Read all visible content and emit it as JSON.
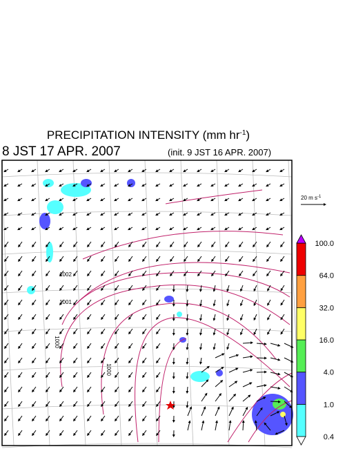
{
  "header": {
    "title": [
      "PRECIPITATION INTENSITY (mm hr",
      "-1",
      ")"
    ],
    "valid_time": "8 JST 17 APR. 2007",
    "init_time": "(init. 9 JST 16 APR. 2007)"
  },
  "vector_scale": [
    "20 m s",
    "-1"
  ],
  "contour_labels": [
    "1002",
    "1001",
    "1000",
    "1000"
  ],
  "colorbar": {
    "levels": [
      0.4,
      {
        "value": 1.0,
        "label": "1.0"
      },
      {
        "value": 4.0,
        "label": "4.0"
      },
      {
        "value": 16.0,
        "label": "16.0"
      },
      {
        "value": 32.0,
        "label": "32.0"
      },
      {
        "value": 64.0,
        "label": "64.0"
      },
      {
        "value": 100.0,
        "label": "100.0"
      }
    ],
    "colors": [
      "#55ffff",
      "#5555ff",
      "#55ee55",
      "#ffff66",
      "#ffa040",
      "#ee0000"
    ],
    "under_color": "#ffffff",
    "over_color": "#bb00ff"
  }
}
